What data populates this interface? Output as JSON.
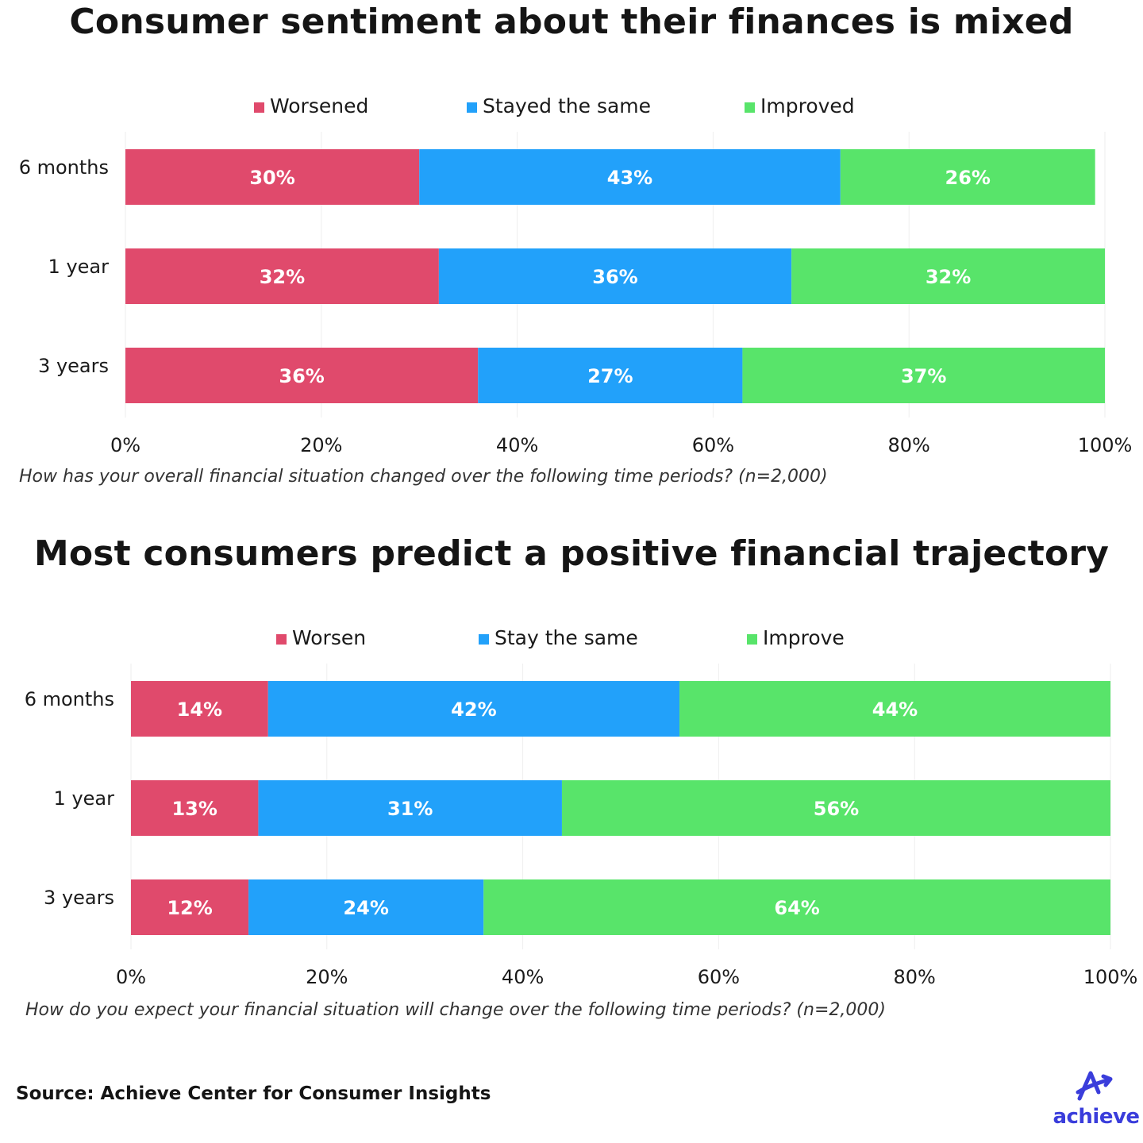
{
  "colors": {
    "worse": "#e04a6c",
    "same": "#22a1fa",
    "better": "#58e46a",
    "text": "#1a1a1a",
    "grid": "#eeeeee",
    "brand": "#3a3ddb"
  },
  "source_text": "Source: Achieve Center for Consumer Insights",
  "logo": {
    "text": "achieve",
    "icon": "achieve-a-arrow-icon"
  },
  "chart_data": [
    {
      "type": "bar",
      "stacked": true,
      "orientation": "horizontal",
      "title": "Consumer sentiment about their finances is mixed",
      "caption": "How has your overall financial situation changed over the following time periods? (n=2,000)",
      "categories": [
        "6 months",
        "1 year",
        "3 years"
      ],
      "series": [
        {
          "name": "Worsened",
          "values": [
            30,
            32,
            36
          ],
          "labels": [
            "30%",
            "32%",
            "36%"
          ],
          "color": "#e04a6c"
        },
        {
          "name": "Stayed the same",
          "values": [
            43,
            36,
            27
          ],
          "labels": [
            "43%",
            "36%",
            "27%"
          ],
          "color": "#22a1fa"
        },
        {
          "name": "Improved",
          "values": [
            26,
            32,
            37
          ],
          "labels": [
            "26%",
            "32%",
            "37%"
          ],
          "color": "#58e46a"
        }
      ],
      "xlim": [
        0,
        100
      ],
      "xticks": [
        "0%",
        "20%",
        "40%",
        "60%",
        "80%",
        "100%"
      ],
      "grid": true,
      "legend": "top-center"
    },
    {
      "type": "bar",
      "stacked": true,
      "orientation": "horizontal",
      "title": "Most consumers predict a positive financial trajectory",
      "caption": "How do you expect your financial situation will change over the following time periods? (n=2,000)",
      "categories": [
        "6 months",
        "1 year",
        "3 years"
      ],
      "series": [
        {
          "name": "Worsen",
          "values": [
            14,
            13,
            12
          ],
          "labels": [
            "14%",
            "13%",
            "12%"
          ],
          "color": "#e04a6c"
        },
        {
          "name": "Stay the same",
          "values": [
            42,
            31,
            24
          ],
          "labels": [
            "42%",
            "31%",
            "24%"
          ],
          "color": "#22a1fa"
        },
        {
          "name": "Improve",
          "values": [
            44,
            56,
            64
          ],
          "labels": [
            "44%",
            "56%",
            "64%"
          ],
          "color": "#58e46a"
        }
      ],
      "xlim": [
        0,
        100
      ],
      "xticks": [
        "0%",
        "20%",
        "40%",
        "60%",
        "80%",
        "100%"
      ],
      "grid": true,
      "legend": "top-center"
    }
  ]
}
